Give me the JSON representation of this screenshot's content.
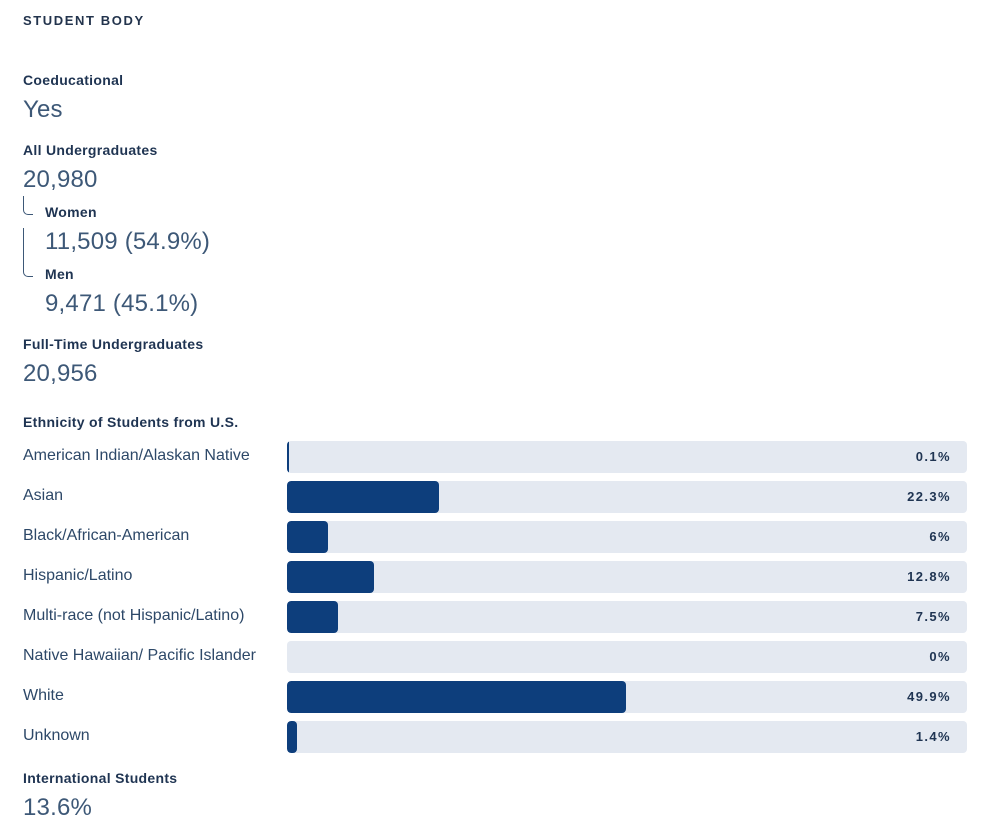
{
  "section_title": "STUDENT BODY",
  "coeducational": {
    "label": "Coeducational",
    "value": "Yes"
  },
  "all_undergraduates": {
    "label": "All Undergraduates",
    "value": "20,980",
    "women": {
      "label": "Women",
      "value": "11,509 (54.9%)"
    },
    "men": {
      "label": "Men",
      "value": "9,471 (45.1%)"
    }
  },
  "full_time": {
    "label": "Full-Time Undergraduates",
    "value": "20,956"
  },
  "ethnicity": {
    "label": "Ethnicity of Students from U.S.",
    "rows": [
      {
        "name": "American Indian/Alaskan Native",
        "pct_label": "0.1%",
        "percent": 0.1
      },
      {
        "name": "Asian",
        "pct_label": "22.3%",
        "percent": 22.3
      },
      {
        "name": "Black/African-American",
        "pct_label": "6%",
        "percent": 6
      },
      {
        "name": "Hispanic/Latino",
        "pct_label": "12.8%",
        "percent": 12.8
      },
      {
        "name": "Multi-race (not Hispanic/Latino)",
        "pct_label": "7.5%",
        "percent": 7.5
      },
      {
        "name": "Native Hawaiian/ Pacific Islander",
        "pct_label": "0%",
        "percent": 0
      },
      {
        "name": "White",
        "pct_label": "49.9%",
        "percent": 49.9
      },
      {
        "name": "Unknown",
        "pct_label": "1.4%",
        "percent": 1.4
      }
    ]
  },
  "international": {
    "label": "International Students",
    "value": "13.6%"
  },
  "colors": {
    "bar_fill": "#0d3e7c",
    "bar_track": "#e4e9f1",
    "text": "#1f3452"
  }
}
